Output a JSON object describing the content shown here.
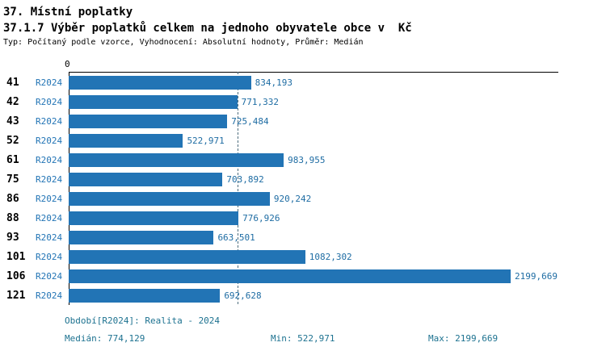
{
  "header": {
    "title": "37. Místní poplatky",
    "subtitle": "37.1.7 Výběr poplatků celkem na jednoho obyvatele obce v  Kč",
    "meta": "Typ: Počítaný podle vzorce, Vyhodnocení: Absolutní hodnoty, Průměr: Medián"
  },
  "chart_data": {
    "type": "bar",
    "orientation": "horizontal",
    "title": "37.1.7 Výběr poplatků celkem na jednoho obyvatele obce v Kč",
    "categories": [
      "41",
      "42",
      "43",
      "52",
      "61",
      "75",
      "86",
      "88",
      "93",
      "101",
      "106",
      "121"
    ],
    "series_label": "R2024",
    "values": [
      834.193,
      771.332,
      725.484,
      522.971,
      983.955,
      703.892,
      920.242,
      776.926,
      663.501,
      1082.302,
      2199.669,
      692.628
    ],
    "value_labels": [
      "834,193",
      "771,332",
      "725,484",
      "522,971",
      "983,955",
      "703,892",
      "920,242",
      "776,926",
      "663,501",
      "1082,302",
      "2199,669",
      "692,628"
    ],
    "axis_zero_label": "0",
    "xlim": [
      0,
      2237
    ],
    "median_value": 774.129,
    "grid": false,
    "legend": "none",
    "bar_color": "#2274b5",
    "median_line_style": "dashed"
  },
  "footer": {
    "period": "Období[R2024]: Realita - 2024",
    "median": "Medián: 774,129",
    "min": "Min: 522,971",
    "max": "Max: 2199,669"
  }
}
